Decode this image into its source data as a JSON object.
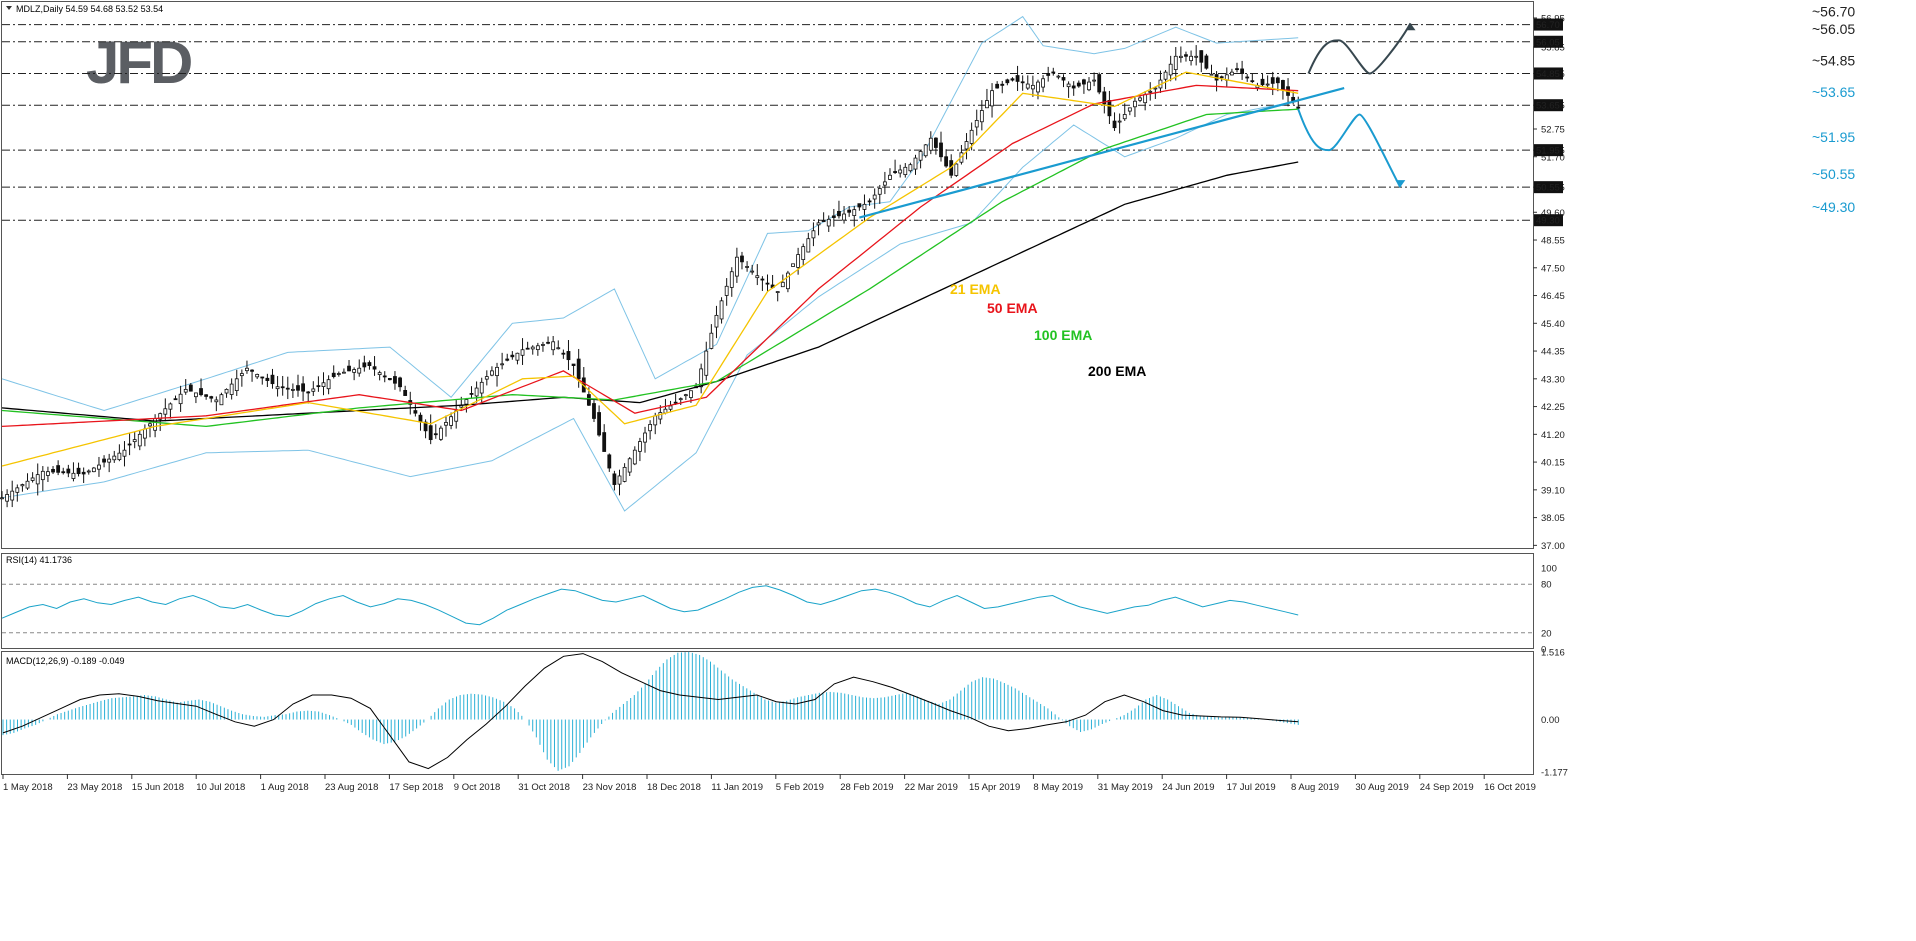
{
  "chart_data": [
    {
      "type": "candlestick",
      "title": "MDLZ,Daily",
      "ohlc_header": "54.59 54.68 53.52 53.54",
      "logo_text": "JFD",
      "ylim": [
        36.9,
        57.1
      ],
      "y_ticks": [
        {
          "value": 56.95,
          "label": "56.95"
        },
        {
          "value": 55.85,
          "label": "55.85"
        },
        {
          "value": 54.85,
          "label": "54.85"
        },
        {
          "value": 53.65,
          "label": "53.65"
        },
        {
          "value": 52.75,
          "label": "52.75"
        },
        {
          "value": 51.95,
          "label": "51.95"
        },
        {
          "value": 51.7,
          "label": "51.70"
        },
        {
          "value": 50.55,
          "label": "50.55"
        },
        {
          "value": 49.6,
          "label": "49.60"
        },
        {
          "value": 48.55,
          "label": "48.55"
        },
        {
          "value": 47.5,
          "label": "47.50"
        },
        {
          "value": 46.45,
          "label": "46.45"
        },
        {
          "value": 45.4,
          "label": "45.40"
        },
        {
          "value": 44.35,
          "label": "44.35"
        },
        {
          "value": 43.3,
          "label": "43.30"
        },
        {
          "value": 42.25,
          "label": "42.25"
        },
        {
          "value": 41.2,
          "label": "41.20"
        },
        {
          "value": 40.15,
          "label": "40.15"
        },
        {
          "value": 39.1,
          "label": "39.10"
        },
        {
          "value": 38.05,
          "label": "38.05"
        },
        {
          "value": 37.0,
          "label": "37.00"
        }
      ],
      "x_dates": [
        "1 May 2018",
        "23 May 2018",
        "15 Jun 2018",
        "10 Jul 2018",
        "1 Aug 2018",
        "23 Aug 2018",
        "17 Sep 2018",
        "9 Oct 2018",
        "31 Oct 2018",
        "23 Nov 2018",
        "18 Dec 2018",
        "11 Jan 2019",
        "5 Feb 2019",
        "28 Feb 2019",
        "22 Mar 2019",
        "15 Apr 2019",
        "8 May 2019",
        "31 May 2019",
        "24 Jun 2019",
        "17 Jul 2019",
        "8 Aug 2019",
        "30 Aug 2019",
        "24 Sep 2019",
        "16 Oct 2019"
      ],
      "levels": [
        {
          "value": 56.7,
          "label": "~56.70",
          "color": "#222222",
          "box": "56.70"
        },
        {
          "value": 56.05,
          "label": "~56.05",
          "color": "#222222",
          "box": "56.05"
        },
        {
          "value": 54.85,
          "label": "~54.85",
          "color": "#222222",
          "box": "54.85"
        },
        {
          "value": 53.65,
          "label": "~53.65",
          "color": "#1a9bd0",
          "box": "53.65"
        },
        {
          "value": 51.95,
          "label": "~51.95",
          "color": "#1a9bd0",
          "box": "51.95"
        },
        {
          "value": 50.55,
          "label": "~50.55",
          "color": "#1a9bd0",
          "box": "50.55"
        },
        {
          "value": 49.3,
          "label": "~49.30",
          "color": "#1a9bd0",
          "box": "49.30"
        }
      ],
      "ema_labels": [
        {
          "text": "21 EMA",
          "color": "#f5c400"
        },
        {
          "text": "50 EMA",
          "color": "#e8141b"
        },
        {
          "text": "100 EMA",
          "color": "#22c222"
        },
        {
          "text": "200 EMA",
          "color": "#000000"
        }
      ],
      "series_points": {
        "price": [
          [
            0,
            38.8
          ],
          [
            8,
            39.8
          ],
          [
            16,
            39.7
          ],
          [
            24,
            40.6
          ],
          [
            30,
            41.8
          ],
          [
            36,
            42.9
          ],
          [
            42,
            42.5
          ],
          [
            48,
            43.7
          ],
          [
            54,
            43.0
          ],
          [
            60,
            42.8
          ],
          [
            66,
            43.5
          ],
          [
            72,
            43.8
          ],
          [
            78,
            43.0
          ],
          [
            84,
            41.0
          ],
          [
            90,
            42.3
          ],
          [
            96,
            43.6
          ],
          [
            102,
            44.4
          ],
          [
            108,
            44.7
          ],
          [
            112,
            43.8
          ],
          [
            116,
            41.8
          ],
          [
            120,
            39.3
          ],
          [
            124,
            40.6
          ],
          [
            128,
            41.9
          ],
          [
            132,
            42.4
          ],
          [
            136,
            43.0
          ],
          [
            140,
            45.7
          ],
          [
            144,
            47.9
          ],
          [
            148,
            47.2
          ],
          [
            152,
            46.6
          ],
          [
            156,
            48.0
          ],
          [
            160,
            49.2
          ],
          [
            166,
            49.6
          ],
          [
            170,
            50.0
          ],
          [
            174,
            51.0
          ],
          [
            178,
            51.4
          ],
          [
            182,
            52.4
          ],
          [
            186,
            51.0
          ],
          [
            190,
            52.7
          ],
          [
            194,
            54.2
          ],
          [
            198,
            54.6
          ],
          [
            202,
            54.4
          ],
          [
            206,
            54.9
          ],
          [
            210,
            54.3
          ],
          [
            214,
            54.6
          ],
          [
            218,
            52.8
          ],
          [
            222,
            53.8
          ],
          [
            226,
            54.3
          ],
          [
            230,
            55.5
          ],
          [
            234,
            55.5
          ],
          [
            238,
            54.6
          ],
          [
            242,
            55.0
          ],
          [
            246,
            54.4
          ],
          [
            250,
            54.5
          ],
          [
            254,
            53.54
          ]
        ],
        "ema21": [
          [
            0,
            40.0
          ],
          [
            30,
            41.5
          ],
          [
            60,
            42.4
          ],
          [
            84,
            41.6
          ],
          [
            102,
            43.3
          ],
          [
            112,
            43.4
          ],
          [
            122,
            41.6
          ],
          [
            136,
            42.3
          ],
          [
            150,
            46.6
          ],
          [
            170,
            49.4
          ],
          [
            186,
            51.3
          ],
          [
            200,
            54.1
          ],
          [
            218,
            53.6
          ],
          [
            232,
            54.9
          ],
          [
            254,
            54.1
          ]
        ],
        "ema50": [
          [
            0,
            41.5
          ],
          [
            40,
            41.9
          ],
          [
            70,
            42.7
          ],
          [
            90,
            42.1
          ],
          [
            110,
            43.6
          ],
          [
            124,
            42.0
          ],
          [
            138,
            42.6
          ],
          [
            160,
            46.7
          ],
          [
            180,
            49.8
          ],
          [
            198,
            52.2
          ],
          [
            214,
            53.7
          ],
          [
            234,
            54.4
          ],
          [
            254,
            54.2
          ]
        ],
        "ema100": [
          [
            0,
            42.1
          ],
          [
            40,
            41.5
          ],
          [
            70,
            42.2
          ],
          [
            100,
            42.7
          ],
          [
            120,
            42.5
          ],
          [
            140,
            43.2
          ],
          [
            170,
            46.7
          ],
          [
            196,
            50.0
          ],
          [
            216,
            52.0
          ],
          [
            236,
            53.3
          ],
          [
            254,
            53.5
          ]
        ],
        "ema200": [
          [
            0,
            42.2
          ],
          [
            30,
            41.7
          ],
          [
            60,
            42.0
          ],
          [
            90,
            42.3
          ],
          [
            110,
            42.6
          ],
          [
            125,
            42.4
          ],
          [
            140,
            43.2
          ],
          [
            160,
            44.5
          ],
          [
            180,
            46.3
          ],
          [
            200,
            48.1
          ],
          [
            220,
            49.9
          ],
          [
            240,
            51.0
          ],
          [
            254,
            51.5
          ]
        ],
        "bb_upper": [
          [
            0,
            43.3
          ],
          [
            20,
            42.1
          ],
          [
            40,
            43.3
          ],
          [
            56,
            44.3
          ],
          [
            76,
            44.5
          ],
          [
            88,
            42.6
          ],
          [
            100,
            45.4
          ],
          [
            110,
            45.6
          ],
          [
            120,
            46.7
          ],
          [
            128,
            43.3
          ],
          [
            140,
            44.6
          ],
          [
            150,
            48.8
          ],
          [
            158,
            48.9
          ],
          [
            166,
            49.8
          ],
          [
            174,
            50.0
          ],
          [
            180,
            51.6
          ],
          [
            192,
            56.0
          ],
          [
            200,
            57.0
          ],
          [
            204,
            55.9
          ],
          [
            214,
            55.6
          ],
          [
            220,
            55.8
          ],
          [
            230,
            56.6
          ],
          [
            238,
            56.0
          ],
          [
            246,
            56.1
          ],
          [
            254,
            56.2
          ]
        ],
        "bb_lower": [
          [
            0,
            38.8
          ],
          [
            20,
            39.4
          ],
          [
            40,
            40.5
          ],
          [
            60,
            40.6
          ],
          [
            80,
            39.6
          ],
          [
            96,
            40.2
          ],
          [
            112,
            41.8
          ],
          [
            122,
            38.3
          ],
          [
            136,
            40.5
          ],
          [
            146,
            44.2
          ],
          [
            160,
            46.4
          ],
          [
            176,
            48.4
          ],
          [
            190,
            49.2
          ],
          [
            200,
            51.3
          ],
          [
            210,
            52.9
          ],
          [
            220,
            51.7
          ],
          [
            230,
            52.4
          ],
          [
            240,
            53.3
          ],
          [
            254,
            53.8
          ]
        ]
      },
      "trendline": {
        "from": [
          168,
          49.4
        ],
        "to": [
          263,
          54.3
        ],
        "color": "#1a9bd0"
      },
      "projections": [
        {
          "name": "bullish",
          "color": "#37474f",
          "points": [
            [
              256,
              54.85
            ],
            [
              262,
              56.1
            ],
            [
              268,
              54.85
            ],
            [
              276,
              56.75
            ]
          ]
        },
        {
          "name": "bearish",
          "color": "#1a9bd0",
          "points": [
            [
              254,
              53.5
            ],
            [
              260,
              51.95
            ],
            [
              266,
              53.3
            ],
            [
              274,
              50.55
            ]
          ]
        }
      ]
    },
    {
      "type": "line",
      "title": "RSI(14) 41.1736",
      "ylim": [
        0,
        100
      ],
      "y_ticks": [
        {
          "value": 100,
          "label": "100"
        },
        {
          "value": 80,
          "label": "80"
        },
        {
          "value": 20,
          "label": "20"
        },
        {
          "value": 0,
          "label": "0"
        }
      ],
      "guides": [
        80,
        20
      ],
      "values": [
        38,
        45,
        52,
        55,
        50,
        58,
        62,
        57,
        55,
        60,
        64,
        58,
        55,
        62,
        66,
        60,
        52,
        50,
        55,
        48,
        42,
        40,
        47,
        56,
        62,
        66,
        58,
        52,
        56,
        62,
        60,
        55,
        48,
        40,
        32,
        30,
        38,
        48,
        55,
        62,
        68,
        74,
        72,
        66,
        60,
        58,
        62,
        66,
        58,
        50,
        46,
        48,
        55,
        62,
        70,
        76,
        78,
        73,
        66,
        58,
        55,
        60,
        66,
        72,
        74,
        70,
        64,
        56,
        52,
        60,
        66,
        58,
        50,
        52,
        56,
        60,
        64,
        66,
        58,
        52,
        48,
        44,
        48,
        52,
        54,
        60,
        64,
        58,
        52,
        56,
        60,
        58,
        54,
        50,
        46,
        42
      ]
    },
    {
      "type": "bar",
      "title": "MACD(12,26,9) -0.189 -0.049",
      "ylim": [
        -1.177,
        1.516
      ],
      "y_ticks": [
        {
          "value": 1.516,
          "label": "1.516"
        },
        {
          "value": 0,
          "label": "0.00"
        },
        {
          "value": -1.177,
          "label": "-1.177"
        }
      ],
      "histogram": [
        -0.35,
        -0.3,
        -0.2,
        -0.12,
        0.0,
        0.12,
        0.2,
        0.28,
        0.35,
        0.42,
        0.48,
        0.5,
        0.52,
        0.55,
        0.52,
        0.45,
        0.38,
        0.42,
        0.45,
        0.4,
        0.3,
        0.2,
        0.12,
        0.08,
        0.06,
        0.1,
        0.12,
        0.18,
        0.2,
        0.18,
        0.1,
        0.0,
        -0.12,
        -0.3,
        -0.45,
        -0.55,
        -0.5,
        -0.38,
        -0.2,
        0.0,
        0.25,
        0.45,
        0.55,
        0.58,
        0.56,
        0.5,
        0.4,
        0.25,
        0.0,
        -0.4,
        -0.9,
        -1.15,
        -1.05,
        -0.75,
        -0.4,
        -0.1,
        0.15,
        0.35,
        0.55,
        0.8,
        1.1,
        1.35,
        1.5,
        1.52,
        1.45,
        1.3,
        1.1,
        0.9,
        0.75,
        0.6,
        0.45,
        0.38,
        0.42,
        0.5,
        0.55,
        0.6,
        0.62,
        0.6,
        0.55,
        0.5,
        0.48,
        0.5,
        0.55,
        0.6,
        0.52,
        0.42,
        0.35,
        0.45,
        0.65,
        0.85,
        0.95,
        0.92,
        0.82,
        0.7,
        0.55,
        0.4,
        0.25,
        0.05,
        -0.15,
        -0.28,
        -0.22,
        -0.1,
        0.0,
        0.1,
        0.25,
        0.45,
        0.55,
        0.45,
        0.3,
        0.15,
        0.08,
        0.06,
        0.05,
        0.05,
        0.04,
        0.02,
        0.0,
        -0.04,
        -0.08,
        -0.12
      ],
      "signal": [
        -0.3,
        -0.15,
        0.05,
        0.25,
        0.45,
        0.55,
        0.58,
        0.52,
        0.42,
        0.36,
        0.3,
        0.12,
        -0.05,
        -0.15,
        0.0,
        0.35,
        0.55,
        0.55,
        0.48,
        0.25,
        -0.35,
        -0.95,
        -1.1,
        -0.85,
        -0.45,
        -0.1,
        0.3,
        0.75,
        1.15,
        1.42,
        1.48,
        1.3,
        1.05,
        0.85,
        0.65,
        0.55,
        0.5,
        0.45,
        0.5,
        0.55,
        0.4,
        0.35,
        0.45,
        0.8,
        0.95,
        0.85,
        0.72,
        0.55,
        0.38,
        0.2,
        0.05,
        -0.15,
        -0.25,
        -0.2,
        -0.12,
        -0.05,
        0.1,
        0.4,
        0.55,
        0.4,
        0.2,
        0.1,
        0.08,
        0.06,
        0.05,
        0.02,
        -0.02,
        -0.05
      ]
    }
  ]
}
